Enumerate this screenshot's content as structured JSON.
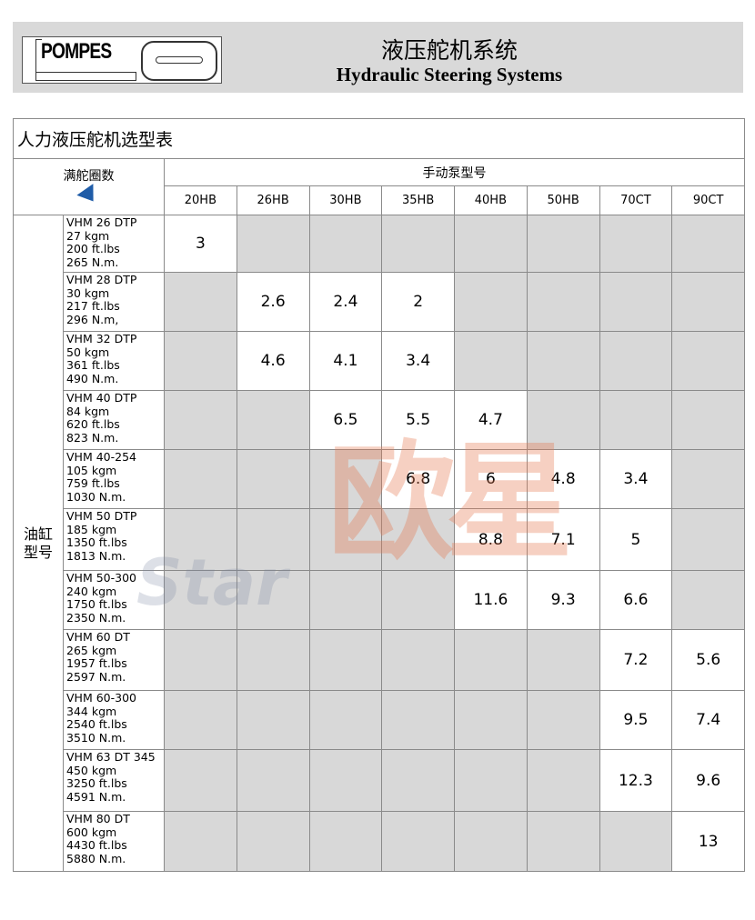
{
  "header": {
    "logo_text": "POMPES",
    "title_cn": "液压舵机系统",
    "title_en": "Hydraulic Steering Systems"
  },
  "table": {
    "title": "人力液压舵机选型表",
    "corner_label": "满舵圈数",
    "group_label": "手动泵型号",
    "side_label": "油缸型号",
    "columns": [
      "20HB",
      "26HB",
      "30HB",
      "35HB",
      "40HB",
      "50HB",
      "70CT",
      "90CT"
    ],
    "rows": [
      {
        "model": [
          "VHM 26 DTP",
          "27 kgm",
          "200 ft.lbs",
          "265 N.m."
        ],
        "values": [
          "3",
          null,
          null,
          null,
          null,
          null,
          null,
          null
        ]
      },
      {
        "model": [
          "VHM 28 DTP",
          "30 kgm",
          "217 ft.lbs",
          "296 N.m,"
        ],
        "values": [
          null,
          "2.6",
          "2.4",
          "2",
          null,
          null,
          null,
          null
        ]
      },
      {
        "model": [
          "VHM 32 DTP",
          "50 kgm",
          "361 ft.lbs",
          "490 N.m."
        ],
        "values": [
          null,
          "4.6",
          "4.1",
          "3.4",
          null,
          null,
          null,
          null
        ]
      },
      {
        "model": [
          "VHM 40 DTP",
          "84 kgm",
          "620 ft.lbs",
          "823 N.m."
        ],
        "values": [
          null,
          null,
          "6.5",
          "5.5",
          "4.7",
          null,
          null,
          null
        ]
      },
      {
        "model": [
          "VHM 40-254",
          "105 kgm",
          "759 ft.lbs",
          "1030 N.m."
        ],
        "values": [
          null,
          null,
          null,
          "6.8",
          "6",
          "4.8",
          "3.4",
          null
        ]
      },
      {
        "model": [
          "VHM 50 DTP",
          "185 kgm",
          "1350 ft.lbs",
          "1813 N.m."
        ],
        "values": [
          null,
          null,
          null,
          null,
          "8.8",
          "7.1",
          "5",
          null
        ]
      },
      {
        "model": [
          "VHM 50-300",
          "240 kgm",
          "1750 ft.lbs",
          "2350 N.m."
        ],
        "values": [
          null,
          null,
          null,
          null,
          "11.6",
          "9.3",
          "6.6",
          null
        ]
      },
      {
        "model": [
          "VHM 60 DT",
          "265 kgm",
          "1957 ft.lbs",
          "2597 N.m."
        ],
        "values": [
          null,
          null,
          null,
          null,
          null,
          null,
          "7.2",
          "5.6"
        ]
      },
      {
        "model": [
          "VHM 60-300",
          "344 kgm",
          "2540 ft.lbs",
          "3510 N.m."
        ],
        "values": [
          null,
          null,
          null,
          null,
          null,
          null,
          "9.5",
          "7.4"
        ]
      },
      {
        "model": [
          "VHM 63 DT 345",
          "450 kgm",
          "3250 ft.lbs",
          "4591 N.m."
        ],
        "values": [
          null,
          null,
          null,
          null,
          null,
          null,
          "12.3",
          "9.6"
        ]
      },
      {
        "model": [
          "VHM 80 DT",
          "600 kgm",
          "4430 ft.lbs",
          "5880 N.m."
        ],
        "values": [
          null,
          null,
          null,
          null,
          null,
          null,
          null,
          "13"
        ]
      }
    ]
  },
  "watermark": {
    "cn": "欧星",
    "en": "Star"
  },
  "colors": {
    "empty_cell": "#d8d8d8",
    "arrow": "#1f5ca8",
    "banner": "#d9d9d9"
  }
}
